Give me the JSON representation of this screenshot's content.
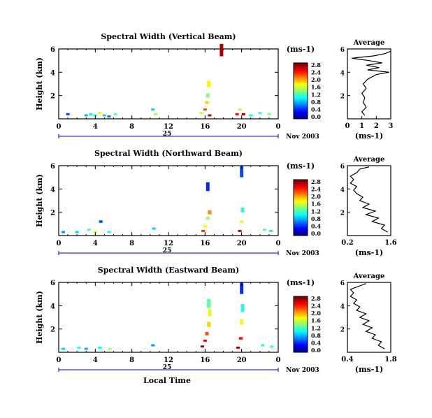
{
  "chart_data": [
    {
      "type": "heatmap",
      "title": "Spectral Width (Vertical Beam)",
      "ylabel": "Height (km)",
      "xlabel": "",
      "xlim": [
        0,
        24
      ],
      "ylim": [
        0,
        6
      ],
      "xticks": [
        "0",
        "4",
        "8",
        "12",
        "16",
        "20",
        "0"
      ],
      "yticks": [
        "2",
        "4",
        "6"
      ],
      "day_label": "25",
      "date_label": "Nov 2003",
      "colorbar": {
        "unit": "(ms-1)",
        "ticks": [
          "0.0",
          "0.4",
          "0.8",
          "1.2",
          "1.6",
          "2.0",
          "2.4",
          "2.8"
        ]
      },
      "cells": [
        {
          "t": 1,
          "h": 0.4,
          "v": 0.6
        },
        {
          "t": 3,
          "h": 0.3,
          "v": 0.9
        },
        {
          "t": 3.5,
          "h": 0.4,
          "v": 1.1
        },
        {
          "t": 4,
          "h": 0.3,
          "v": 1.3
        },
        {
          "t": 4.5,
          "h": 0.5,
          "v": 1.8
        },
        {
          "t": 5,
          "h": 0.3,
          "v": 1.0
        },
        {
          "t": 5.5,
          "h": 0.2,
          "v": 0.7
        },
        {
          "t": 6.2,
          "h": 0.4,
          "v": 1.4
        },
        {
          "t": 10.3,
          "h": 0.8,
          "v": 1.0
        },
        {
          "t": 10.6,
          "h": 0.4,
          "v": 1.6
        },
        {
          "t": 15.6,
          "h": 0.5,
          "v": 1.7
        },
        {
          "t": 16.0,
          "h": 0.8,
          "v": 2.4
        },
        {
          "t": 16.2,
          "h": 1.4,
          "v": 2.0
        },
        {
          "t": 16.3,
          "h": 2.0,
          "v": 1.5
        },
        {
          "t": 16.4,
          "h": 3.0,
          "v": 1.9
        },
        {
          "t": 16.5,
          "h": 0.3,
          "v": 2.8
        },
        {
          "t": 19.5,
          "h": 0.4,
          "v": 2.6
        },
        {
          "t": 19.8,
          "h": 0.8,
          "v": 1.7
        },
        {
          "t": 20.2,
          "h": 0.4,
          "v": 2.9
        },
        {
          "t": 21.0,
          "h": 0.3,
          "v": 1.2
        },
        {
          "t": 22.0,
          "h": 0.5,
          "v": 1.3
        },
        {
          "t": 23.0,
          "h": 0.4,
          "v": 1.5
        },
        {
          "t": 17.8,
          "h": 5.9,
          "v": 2.9
        }
      ],
      "average": {
        "title": "Average",
        "xlabel": "(ms-1)",
        "xticks": [
          "0",
          "1",
          "2",
          "3"
        ],
        "xlim": [
          0,
          3
        ],
        "yticks": [
          "2",
          "4",
          "6"
        ],
        "ylim": [
          0,
          6
        ],
        "profile": [
          [
            0.3,
            1.2
          ],
          [
            0.6,
            1.0
          ],
          [
            1.0,
            1.3
          ],
          [
            1.4,
            1.1
          ],
          [
            1.8,
            1.2
          ],
          [
            2.2,
            1.0
          ],
          [
            2.6,
            1.3
          ],
          [
            3.0,
            1.1
          ],
          [
            3.4,
            1.4
          ],
          [
            3.8,
            2.0
          ],
          [
            4.0,
            2.9
          ],
          [
            4.2,
            1.4
          ],
          [
            4.4,
            2.2
          ],
          [
            4.6,
            1.3
          ],
          [
            4.8,
            2.4
          ],
          [
            5.0,
            1.5
          ],
          [
            5.2,
            0.3
          ],
          [
            5.4,
            1.8
          ],
          [
            5.6,
            2.6
          ],
          [
            5.8,
            3.0
          ]
        ]
      }
    },
    {
      "type": "heatmap",
      "title": "Spectral Width (Northward Beam)",
      "ylabel": "Height (km)",
      "xlabel": "",
      "xlim": [
        0,
        24
      ],
      "ylim": [
        0,
        6
      ],
      "xticks": [
        "0",
        "4",
        "8",
        "12",
        "16",
        "20",
        "0"
      ],
      "yticks": [
        "2",
        "4",
        "6"
      ],
      "day_label": "25",
      "date_label": "Nov 2003",
      "colorbar": {
        "unit": "(ms-1)",
        "ticks": [
          "0.0",
          "0.4",
          "0.8",
          "1.2",
          "1.6",
          "2.0",
          "2.4",
          "2.8"
        ]
      },
      "cells": [
        {
          "t": 0.5,
          "h": 0.3,
          "v": 0.8
        },
        {
          "t": 2.0,
          "h": 0.3,
          "v": 1.0
        },
        {
          "t": 3.3,
          "h": 0.5,
          "v": 1.3
        },
        {
          "t": 4.0,
          "h": 0.3,
          "v": 1.8
        },
        {
          "t": 4.6,
          "h": 1.2,
          "v": 0.6
        },
        {
          "t": 5.5,
          "h": 0.3,
          "v": 1.2
        },
        {
          "t": 10.4,
          "h": 0.6,
          "v": 1.0
        },
        {
          "t": 15.8,
          "h": 0.4,
          "v": 2.5
        },
        {
          "t": 16.0,
          "h": 0.8,
          "v": 1.9
        },
        {
          "t": 16.3,
          "h": 1.5,
          "v": 1.6
        },
        {
          "t": 16.5,
          "h": 2.0,
          "v": 2.2
        },
        {
          "t": 16.3,
          "h": 4.2,
          "v": 0.5
        },
        {
          "t": 19.8,
          "h": 0.4,
          "v": 2.8
        },
        {
          "t": 20.0,
          "h": 1.2,
          "v": 1.8
        },
        {
          "t": 20.1,
          "h": 2.2,
          "v": 1.2
        },
        {
          "t": 20.0,
          "h": 5.5,
          "v": 0.6
        },
        {
          "t": 22.5,
          "h": 0.5,
          "v": 1.4
        },
        {
          "t": 23.2,
          "h": 0.4,
          "v": 1.1
        }
      ],
      "average": {
        "title": "Average",
        "xlabel": "(ms-1)",
        "xticks": [
          "0.2",
          "1.6"
        ],
        "xlim": [
          0.2,
          1.6
        ],
        "yticks": [
          "2",
          "4",
          "6"
        ],
        "ylim": [
          0,
          6
        ],
        "profile": [
          [
            0.3,
            1.5
          ],
          [
            0.6,
            1.3
          ],
          [
            0.9,
            1.4
          ],
          [
            1.2,
            1.0
          ],
          [
            1.5,
            1.2
          ],
          [
            1.8,
            0.8
          ],
          [
            2.1,
            1.1
          ],
          [
            2.4,
            0.7
          ],
          [
            2.7,
            0.9
          ],
          [
            3.0,
            0.6
          ],
          [
            3.3,
            0.7
          ],
          [
            3.6,
            0.5
          ],
          [
            3.9,
            0.4
          ],
          [
            4.2,
            0.5
          ],
          [
            4.5,
            0.3
          ],
          [
            4.8,
            0.4
          ],
          [
            5.1,
            0.3
          ],
          [
            5.4,
            0.5
          ],
          [
            5.7,
            0.6
          ],
          [
            5.9,
            0.9
          ]
        ]
      }
    },
    {
      "type": "heatmap",
      "title": "Spectral Width (Eastward Beam)",
      "ylabel": "Height (km)",
      "xlabel": "Local Time",
      "xlim": [
        0,
        24
      ],
      "ylim": [
        0,
        6
      ],
      "xticks": [
        "0",
        "4",
        "8",
        "12",
        "16",
        "20",
        "0"
      ],
      "yticks": [
        "2",
        "4",
        "6"
      ],
      "day_label": "25",
      "date_label": "Nov 2003",
      "colorbar": {
        "unit": "(ms-1)",
        "ticks": [
          "0.0",
          "0.4",
          "0.8",
          "1.2",
          "1.6",
          "2.0",
          "2.4",
          "2.8"
        ]
      },
      "cells": [
        {
          "t": 0.5,
          "h": 0.3,
          "v": 1.0
        },
        {
          "t": 2.2,
          "h": 0.4,
          "v": 1.2
        },
        {
          "t": 3.0,
          "h": 0.3,
          "v": 0.9
        },
        {
          "t": 4.5,
          "h": 0.4,
          "v": 1.1
        },
        {
          "t": 5.6,
          "h": 0.3,
          "v": 1.6
        },
        {
          "t": 10.3,
          "h": 0.6,
          "v": 0.8
        },
        {
          "t": 15.7,
          "h": 0.5,
          "v": 2.9
        },
        {
          "t": 16.0,
          "h": 1.0,
          "v": 2.7
        },
        {
          "t": 16.2,
          "h": 1.6,
          "v": 2.4
        },
        {
          "t": 16.4,
          "h": 2.4,
          "v": 2.0
        },
        {
          "t": 16.5,
          "h": 3.4,
          "v": 1.8
        },
        {
          "t": 16.4,
          "h": 4.2,
          "v": 1.4
        },
        {
          "t": 19.6,
          "h": 0.4,
          "v": 2.9
        },
        {
          "t": 19.9,
          "h": 1.2,
          "v": 2.6
        },
        {
          "t": 20.0,
          "h": 2.6,
          "v": 1.9
        },
        {
          "t": 20.1,
          "h": 3.8,
          "v": 1.2
        },
        {
          "t": 20.0,
          "h": 5.5,
          "v": 0.5
        },
        {
          "t": 22.3,
          "h": 0.6,
          "v": 1.2
        },
        {
          "t": 23.3,
          "h": 0.5,
          "v": 1.3
        }
      ],
      "average": {
        "title": "Average",
        "xlabel": "(ms-1)",
        "xticks": [
          "0.4",
          "1.8"
        ],
        "xlim": [
          0.4,
          1.8
        ],
        "yticks": [
          "2",
          "4",
          "6"
        ],
        "ylim": [
          0,
          6
        ],
        "profile": [
          [
            0.3,
            1.6
          ],
          [
            0.6,
            1.4
          ],
          [
            0.9,
            1.5
          ],
          [
            1.2,
            1.2
          ],
          [
            1.5,
            1.3
          ],
          [
            1.8,
            1.0
          ],
          [
            2.1,
            1.2
          ],
          [
            2.4,
            0.9
          ],
          [
            2.7,
            1.1
          ],
          [
            3.0,
            0.8
          ],
          [
            3.3,
            1.0
          ],
          [
            3.6,
            0.7
          ],
          [
            3.9,
            0.8
          ],
          [
            4.2,
            0.6
          ],
          [
            4.5,
            0.7
          ],
          [
            4.8,
            0.5
          ],
          [
            5.1,
            0.6
          ],
          [
            5.4,
            0.5
          ],
          [
            5.7,
            0.8
          ],
          [
            5.9,
            1.0
          ]
        ]
      }
    }
  ]
}
